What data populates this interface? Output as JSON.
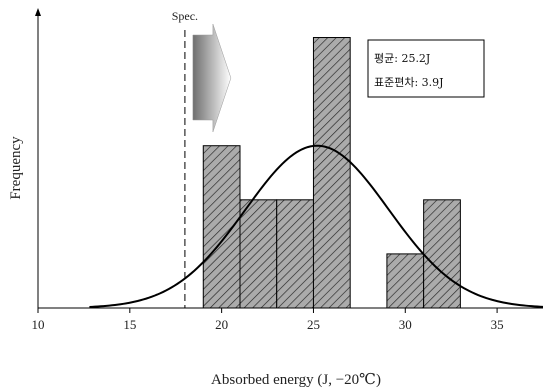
{
  "chart_data": {
    "type": "bar",
    "subtype": "histogram",
    "xlabel": "Absorbed energy (J, −20℃)",
    "ylabel": "Frequency",
    "xlim": [
      10,
      37.5
    ],
    "ylim": [
      0,
      10.5
    ],
    "xticks": [
      10,
      15,
      20,
      25,
      30,
      35
    ],
    "bin_width": 2,
    "bins": [
      {
        "x0": 19,
        "x1": 21,
        "count": 6
      },
      {
        "x0": 21,
        "x1": 23,
        "count": 4
      },
      {
        "x0": 23,
        "x1": 25,
        "count": 4
      },
      {
        "x0": 25,
        "x1": 27,
        "count": 10
      },
      {
        "x0": 29,
        "x1": 31,
        "count": 2
      },
      {
        "x0": 31,
        "x1": 33,
        "count": 4
      }
    ],
    "normal_curve": {
      "mean": 25.2,
      "std": 3.9,
      "peak": 6,
      "x_range": [
        12.8,
        37.5
      ]
    },
    "spec": {
      "label": "Spec.",
      "value": 18
    },
    "annotation": {
      "mean_text": "평균: 25.2J",
      "std_text": "표준편차: 3.9J"
    },
    "grid": false,
    "colors": {
      "bar_fill": "#aaaaaa",
      "hatch": "#222222",
      "curve": "#000000",
      "arrow_dark": "#6e6e6e",
      "arrow_light": "#ffffff"
    }
  }
}
